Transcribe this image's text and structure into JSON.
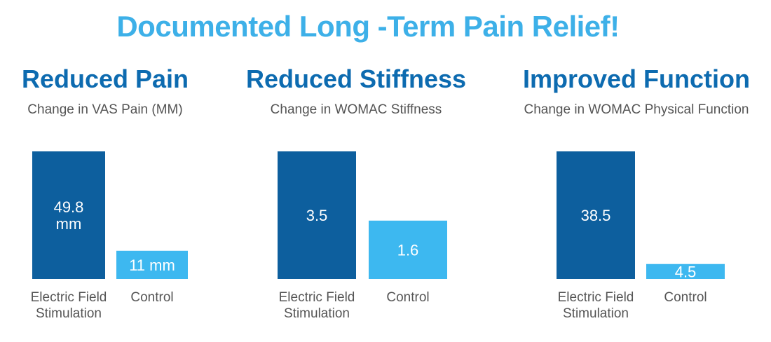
{
  "title": "Documented Long -Term Pain Relief!",
  "colors": {
    "title": "#3db0e8",
    "panel_title": "#0d6bb0",
    "dark_bar": "#0d5f9e",
    "light_bar": "#3db8f0",
    "subtext": "#555555"
  },
  "chart_data": [
    {
      "type": "bar",
      "title": "Reduced Pain",
      "subtitle": "Change in VAS Pain (MM)",
      "categories": [
        "Electric Field Stimulation",
        "Control"
      ],
      "category_lines": [
        [
          "Electric Field",
          "Stimulation"
        ],
        [
          "Control"
        ]
      ],
      "values": [
        49.8,
        11
      ],
      "data_labels": [
        [
          "49.8",
          "mm"
        ],
        [
          "11 mm"
        ]
      ],
      "ylim": [
        0,
        49.8
      ]
    },
    {
      "type": "bar",
      "title": "Reduced Stiffness",
      "subtitle": "Change in WOMAC Stiffness",
      "categories": [
        "Electric Field Stimulation",
        "Control"
      ],
      "category_lines": [
        [
          "Electric Field",
          "Stimulation"
        ],
        [
          "Control"
        ]
      ],
      "values": [
        3.5,
        1.6
      ],
      "data_labels": [
        [
          "3.5"
        ],
        [
          "1.6"
        ]
      ],
      "ylim": [
        0,
        3.5
      ]
    },
    {
      "type": "bar",
      "title": "Improved Function",
      "subtitle": "Change in WOMAC Physical Function",
      "categories": [
        "Electric Field Stimulation",
        "Control"
      ],
      "category_lines": [
        [
          "Electric Field",
          "Stimulation"
        ],
        [
          "Control"
        ]
      ],
      "values": [
        38.5,
        4.5
      ],
      "data_labels": [
        [
          "38.5"
        ],
        [
          "4.5"
        ]
      ],
      "ylim": [
        0,
        38.5
      ]
    }
  ]
}
